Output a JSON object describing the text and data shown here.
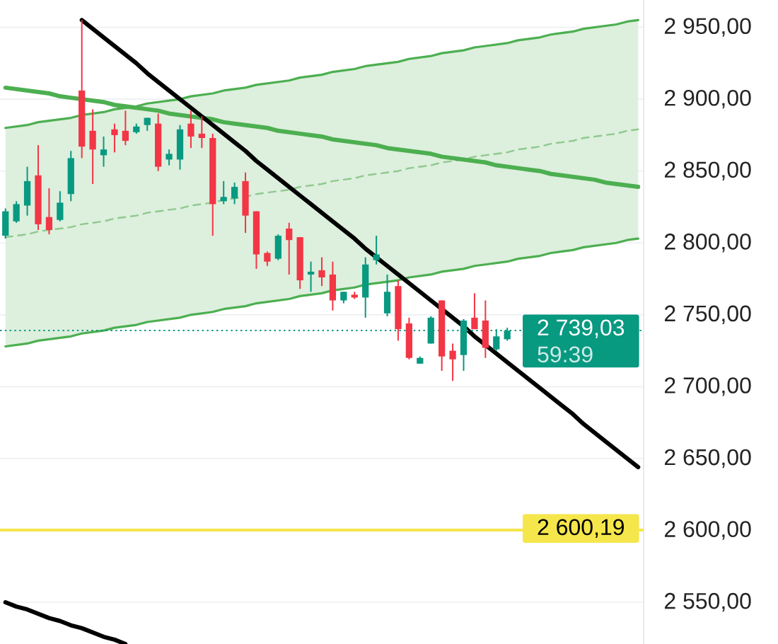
{
  "chart_data": {
    "type": "candlestick",
    "categories": [
      null,
      null,
      null,
      null,
      null,
      null,
      null,
      null,
      null,
      null,
      null,
      null,
      null,
      null,
      null,
      null,
      null,
      null,
      null,
      null,
      null,
      null,
      null,
      null,
      null,
      null,
      null,
      null,
      null,
      null,
      null,
      null,
      null,
      null,
      null,
      null,
      null,
      null,
      null,
      null,
      null,
      null,
      null,
      null,
      null,
      null,
      null,
      null,
      null,
      null,
      null,
      null,
      null,
      null,
      null,
      null,
      null,
      null,
      null
    ],
    "ohlc": [
      [
        2805,
        2824,
        2803,
        2822
      ],
      [
        2815,
        2829,
        2814,
        2827
      ],
      [
        2826,
        2853,
        2819,
        2843
      ],
      [
        2847,
        2868,
        2809,
        2813
      ],
      [
        2818,
        2838,
        2806,
        2809
      ],
      [
        2816,
        2836,
        2815,
        2828
      ],
      [
        2834,
        2864,
        2829,
        2859
      ],
      [
        2906,
        2955,
        2859,
        2867
      ],
      [
        2878,
        2893,
        2841,
        2865
      ],
      [
        2861,
        2874,
        2853,
        2865
      ],
      [
        2879,
        2883,
        2863,
        2875
      ],
      [
        2878,
        2892,
        2868,
        2871
      ],
      [
        2877,
        2883,
        2876,
        2881
      ],
      [
        2882,
        2887,
        2878,
        2887
      ],
      [
        2883,
        2890,
        2850,
        2853
      ],
      [
        2858,
        2865,
        2854,
        2862
      ],
      [
        2858,
        2882,
        2851,
        2879
      ],
      [
        2883,
        2892,
        2866,
        2874
      ],
      [
        2876,
        2888,
        2866,
        2873
      ],
      [
        2873,
        2876,
        2805,
        2827
      ],
      [
        2829,
        2843,
        2827,
        2832
      ],
      [
        2831,
        2842,
        2827,
        2839
      ],
      [
        2843,
        2849,
        2807,
        2819
      ],
      [
        2822,
        2822,
        2782,
        2792
      ],
      [
        2793,
        2794,
        2784,
        2787
      ],
      [
        2789,
        2806,
        2788,
        2805
      ],
      [
        2810,
        2814,
        2778,
        2802
      ],
      [
        2804,
        2804,
        2768,
        2774
      ],
      [
        2778,
        2787,
        2766,
        2780
      ],
      [
        2781,
        2790,
        2770,
        2776
      ],
      [
        2778,
        2787,
        2753,
        2760
      ],
      [
        2760,
        2766,
        2758,
        2766
      ],
      [
        2764,
        2766,
        2761,
        2762
      ],
      [
        2762,
        2790,
        2748,
        2785
      ],
      [
        2788,
        2805,
        2785,
        2792
      ],
      [
        2751,
        2778,
        2749,
        2766
      ],
      [
        2770,
        2774,
        2732,
        2740
      ],
      [
        2744,
        2748,
        2719,
        2720
      ],
      [
        2716,
        2721,
        2716,
        2720
      ],
      [
        2730,
        2749,
        2730,
        2748
      ],
      [
        2760,
        2760,
        2711,
        2721
      ],
      [
        2725,
        2730,
        2704,
        2719
      ],
      [
        2722,
        2747,
        2711,
        2746
      ],
      [
        2748,
        2765,
        2740,
        2740
      ],
      [
        2746,
        2760,
        2720,
        2727
      ],
      [
        2726,
        2740,
        2725,
        2735
      ],
      [
        2733,
        2741,
        2732,
        2739
      ],
      null,
      null,
      null,
      null,
      null,
      null,
      null,
      null,
      null,
      null,
      null,
      null
    ],
    "colors": [
      "#089981",
      "#089981",
      "#089981",
      "#f23645",
      "#f23645",
      "#089981",
      "#089981",
      "#f23645",
      "#f23645",
      "#089981",
      "#f23645",
      "#f23645",
      "#089981",
      "#089981",
      "#f23645",
      "#089981",
      "#089981",
      "#f23645",
      "#f23645",
      "#f23645",
      "#089981",
      "#089981",
      "#f23645",
      "#f23645",
      "#f23645",
      "#089981",
      "#f23645",
      "#f23645",
      "#089981",
      "#f23645",
      "#f23645",
      "#089981",
      "#f23645",
      "#089981",
      "#089981",
      "#089981",
      "#f23645",
      "#f23645",
      "#089981",
      "#089981",
      "#f23645",
      "#f23645",
      "#089981",
      "#f23645",
      "#f23645",
      "#089981",
      "#089981",
      null,
      null,
      null,
      null,
      null,
      null,
      null,
      null,
      null,
      null,
      null,
      null
    ],
    "series": [
      {
        "type": "line",
        "color": "#8fc98f",
        "line_style": "dashed",
        "values": [
          2804,
          2805,
          2806,
          2808,
          2809,
          2810,
          2811,
          2813,
          2814,
          2815,
          2817,
          2818,
          2819,
          2821,
          2822,
          2823,
          2824,
          2826,
          2827,
          2828,
          2830,
          2831,
          2832,
          2834,
          2835,
          2836,
          2837,
          2839,
          2840,
          2841,
          2843,
          2844,
          2845,
          2847,
          2848,
          2849,
          2850,
          2852,
          2853,
          2854,
          2856,
          2857,
          2858,
          2860,
          2861,
          2862,
          2863,
          2865,
          2866,
          2867,
          2869,
          2870,
          2871,
          2873,
          2874,
          2875,
          2876,
          2878,
          2879
        ],
        "upper": [
          2880,
          2881,
          2882,
          2884,
          2885,
          2886,
          2887,
          2889,
          2890,
          2891,
          2893,
          2894,
          2895,
          2897,
          2898,
          2899,
          2900,
          2902,
          2903,
          2904,
          2906,
          2907,
          2908,
          2910,
          2911,
          2912,
          2913,
          2915,
          2916,
          2917,
          2919,
          2920,
          2921,
          2923,
          2924,
          2925,
          2926,
          2928,
          2929,
          2930,
          2932,
          2933,
          2934,
          2936,
          2937,
          2938,
          2939,
          2941,
          2942,
          2943,
          2945,
          2946,
          2947,
          2949,
          2950,
          2951,
          2952,
          2954,
          2955
        ],
        "lower": [
          2728,
          2729,
          2730,
          2732,
          2733,
          2734,
          2735,
          2737,
          2738,
          2739,
          2741,
          2742,
          2743,
          2745,
          2746,
          2747,
          2748,
          2750,
          2751,
          2752,
          2754,
          2755,
          2756,
          2758,
          2759,
          2760,
          2761,
          2763,
          2764,
          2765,
          2767,
          2768,
          2769,
          2771,
          2772,
          2773,
          2774,
          2776,
          2777,
          2778,
          2780,
          2781,
          2782,
          2784,
          2785,
          2786,
          2787,
          2789,
          2790,
          2791,
          2793,
          2794,
          2795,
          2797,
          2798,
          2799,
          2800,
          2802,
          2803
        ]
      },
      {
        "type": "line",
        "color": "#4caf50",
        "values": [
          2880,
          2881,
          2882,
          2884,
          2885,
          2886,
          2887,
          2889,
          2890,
          2891,
          2893,
          2894,
          2895,
          2897,
          2898,
          2899,
          2900,
          2902,
          2903,
          2904,
          2906,
          2907,
          2908,
          2910,
          2911,
          2912,
          2913,
          2915,
          2916,
          2917,
          2919,
          2920,
          2921,
          2923,
          2924,
          2925,
          2926,
          2928,
          2929,
          2930,
          2932,
          2933,
          2934,
          2936,
          2937,
          2938,
          2939,
          2941,
          2942,
          2943,
          2945,
          2946,
          2947,
          2949,
          2950,
          2951,
          2952,
          2954,
          2955
        ]
      },
      {
        "type": "line",
        "color": "#4caf50",
        "values": [
          2728,
          2729,
          2730,
          2732,
          2733,
          2734,
          2735,
          2737,
          2738,
          2739,
          2741,
          2742,
          2743,
          2745,
          2746,
          2747,
          2748,
          2750,
          2751,
          2752,
          2754,
          2755,
          2756,
          2758,
          2759,
          2760,
          2761,
          2763,
          2764,
          2765,
          2767,
          2768,
          2769,
          2771,
          2772,
          2773,
          2774,
          2776,
          2777,
          2778,
          2780,
          2781,
          2782,
          2784,
          2785,
          2786,
          2787,
          2789,
          2790,
          2791,
          2793,
          2794,
          2795,
          2797,
          2798,
          2799,
          2800,
          2802,
          2803
        ]
      },
      {
        "type": "line",
        "color": "#4caf50",
        "values": [
          2908,
          2907,
          2906,
          2905,
          2904,
          2902,
          2901,
          2900,
          2899,
          2898,
          2896,
          2895,
          2894,
          2893,
          2892,
          2890,
          2889,
          2888,
          2887,
          2886,
          2884,
          2883,
          2882,
          2881,
          2880,
          2878,
          2877,
          2876,
          2875,
          2874,
          2872,
          2871,
          2870,
          2869,
          2868,
          2866,
          2865,
          2864,
          2863,
          2862,
          2860,
          2859,
          2858,
          2857,
          2856,
          2854,
          2853,
          2852,
          2851,
          2850,
          2848,
          2847,
          2846,
          2845,
          2844,
          2842,
          2841,
          2840,
          2839
        ]
      },
      {
        "type": "line",
        "color": "#000000",
        "values": [
          null,
          null,
          null,
          null,
          null,
          null,
          null,
          2955,
          2949,
          2943,
          2937,
          2931,
          2925,
          2918,
          2912,
          2906,
          2900,
          2894,
          2888,
          2882,
          2876,
          2870,
          2864,
          2857,
          2851,
          2845,
          2839,
          2833,
          2827,
          2821,
          2815,
          2809,
          2803,
          2796,
          2790,
          2784,
          2778,
          2772,
          2766,
          2760,
          2754,
          2748,
          2742,
          2735,
          2729,
          2723,
          2717,
          2711,
          2705,
          2699,
          2693,
          2687,
          2681,
          2674,
          2668,
          2662,
          2656,
          2650,
          2644
        ]
      },
      {
        "type": "line",
        "color": "#000000",
        "values": [
          2550,
          2547,
          2545,
          2542,
          2539,
          2537,
          2534,
          2532,
          2529,
          2526,
          2524,
          2521,
          null,
          null,
          null,
          null,
          null,
          null,
          null,
          null,
          null,
          null,
          null,
          null,
          null,
          null,
          null,
          null,
          null,
          null,
          null,
          null,
          null,
          null,
          null,
          null,
          null,
          null,
          null,
          null,
          null,
          null,
          null,
          null,
          null,
          null,
          null,
          null,
          null,
          null,
          null,
          null,
          null,
          null,
          null,
          null,
          null,
          null,
          null
        ]
      }
    ],
    "ylim": [
      2521,
      2969
    ],
    "yticks": [
      {
        "value": 2950,
        "label": "2 950,00"
      },
      {
        "value": 2900,
        "label": "2 900,00"
      },
      {
        "value": 2850,
        "label": "2 850,00"
      },
      {
        "value": 2800,
        "label": "2 800,00"
      },
      {
        "value": 2750,
        "label": "2 750,00"
      },
      {
        "value": 2700,
        "label": "2 700,00"
      },
      {
        "value": 2650,
        "label": "2 650,00"
      },
      {
        "value": 2600,
        "label": "2 600,00"
      },
      {
        "value": 2550,
        "label": "2 550,00"
      }
    ],
    "grid": "y",
    "tick_labels": "y",
    "ref_lines": [
      {
        "axis": "y",
        "value": 2739.03,
        "label": "2 739,03",
        "color": "#089981",
        "line_style": "dotted"
      },
      {
        "axis": "y",
        "value": 2600.19,
        "label": "2 600,19",
        "color": "#f5e64b"
      }
    ],
    "annotations": [
      "59:39"
    ]
  }
}
